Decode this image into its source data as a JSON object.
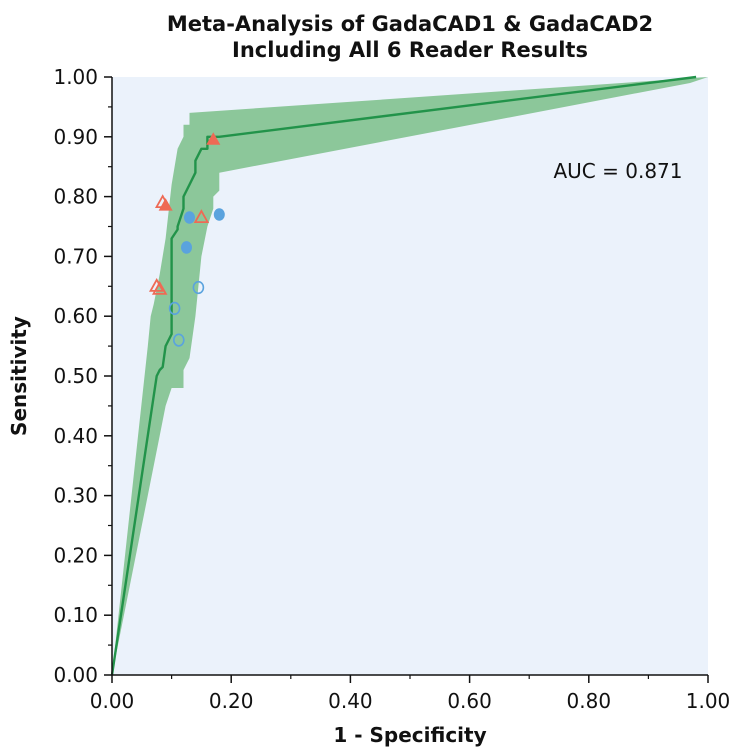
{
  "chart_data": {
    "type": "line",
    "title_lines": [
      "Meta-Analysis of GadaCAD1 & GadaCAD2",
      "Including All 6 Reader Results"
    ],
    "xlabel": "1 - Specificity",
    "ylabel": "Sensitivity",
    "xlim": [
      0,
      1
    ],
    "ylim": [
      0,
      1
    ],
    "x_ticks": [
      "0.00",
      "0.20",
      "0.40",
      "0.60",
      "0.80",
      "1.00"
    ],
    "x_tick_values": [
      0,
      0.2,
      0.4,
      0.6,
      0.8,
      1.0
    ],
    "y_ticks": [
      "0.00",
      "0.10",
      "0.20",
      "0.30",
      "0.40",
      "0.50",
      "0.60",
      "0.70",
      "0.80",
      "0.90",
      "1.00"
    ],
    "y_tick_values": [
      0,
      0.1,
      0.2,
      0.3,
      0.4,
      0.5,
      0.6,
      0.7,
      0.8,
      0.9,
      1.0
    ],
    "annotation": "AUC = 0.871",
    "grid": false,
    "colors": {
      "plot_background": "#ebf2fb",
      "band_fill": "#8cc79a",
      "curve": "#22934a",
      "triangle": "#ee6a55",
      "circle": "#5aa3de"
    },
    "summary_curve": {
      "x": [
        0,
        0.075,
        0.08,
        0.085,
        0.09,
        0.095,
        0.1,
        0.1,
        0.1,
        0.11,
        0.11,
        0.12,
        0.12,
        0.13,
        0.14,
        0.14,
        0.15,
        0.16,
        0.16,
        0.17,
        0.17,
        0.18,
        0.98
      ],
      "y": [
        0,
        0.5,
        0.51,
        0.515,
        0.55,
        0.56,
        0.57,
        0.67,
        0.73,
        0.745,
        0.75,
        0.78,
        0.8,
        0.82,
        0.84,
        0.86,
        0.88,
        0.88,
        0.9,
        0.9,
        0.9,
        0.9,
        1.0
      ]
    },
    "confidence_band": {
      "upper": {
        "x": [
          0,
          0.06,
          0.065,
          0.07,
          0.08,
          0.09,
          0.1,
          0.11,
          0.12,
          0.12,
          0.13,
          0.13,
          1.0
        ],
        "y": [
          0,
          0.55,
          0.6,
          0.62,
          0.67,
          0.73,
          0.82,
          0.88,
          0.9,
          0.92,
          0.92,
          0.94,
          1.0
        ]
      },
      "lower": {
        "x": [
          0,
          0.08,
          0.09,
          0.1,
          0.12,
          0.12,
          0.13,
          0.14,
          0.15,
          0.16,
          0.17,
          0.17,
          0.18,
          0.18,
          0.97,
          1.0
        ],
        "y": [
          0,
          0.4,
          0.45,
          0.48,
          0.48,
          0.51,
          0.53,
          0.6,
          0.7,
          0.75,
          0.78,
          0.8,
          0.81,
          0.84,
          0.99,
          1.0
        ]
      }
    },
    "series": [
      {
        "marker": "triangle-filled",
        "points": [
          {
            "x": 0.09,
            "y": 0.785
          },
          {
            "x": 0.17,
            "y": 0.895
          }
        ]
      },
      {
        "marker": "triangle-open",
        "points": [
          {
            "x": 0.085,
            "y": 0.79
          },
          {
            "x": 0.075,
            "y": 0.65
          },
          {
            "x": 0.08,
            "y": 0.645
          },
          {
            "x": 0.15,
            "y": 0.765
          }
        ]
      },
      {
        "marker": "circle-filled",
        "points": [
          {
            "x": 0.13,
            "y": 0.765
          },
          {
            "x": 0.125,
            "y": 0.715
          },
          {
            "x": 0.18,
            "y": 0.77
          }
        ]
      },
      {
        "marker": "circle-open",
        "points": [
          {
            "x": 0.145,
            "y": 0.648
          },
          {
            "x": 0.105,
            "y": 0.613
          },
          {
            "x": 0.112,
            "y": 0.56
          }
        ]
      }
    ]
  }
}
